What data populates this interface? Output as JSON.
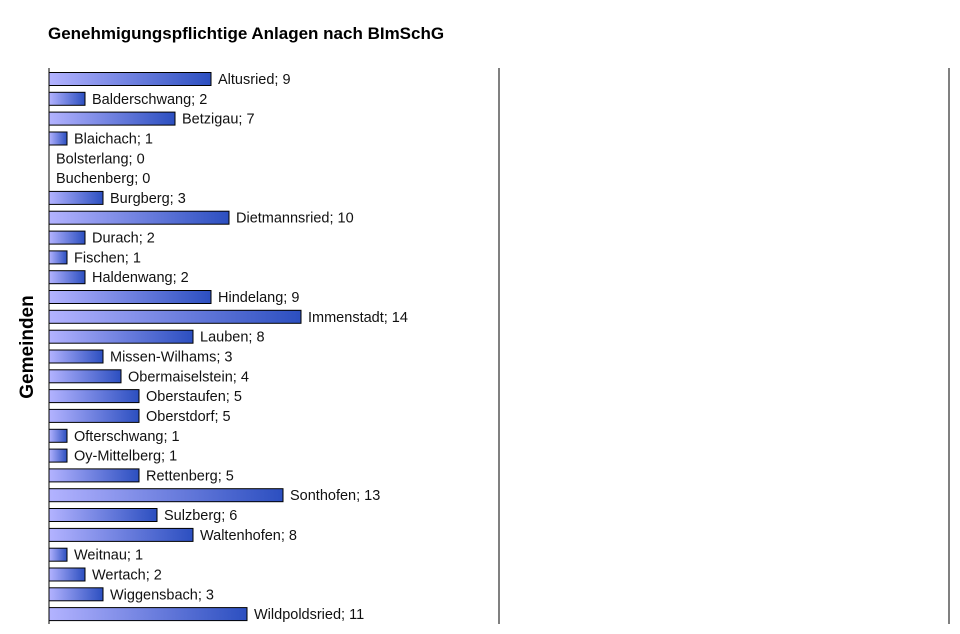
{
  "chart_data": {
    "type": "bar",
    "orientation": "horizontal",
    "title": "Genehmigungspflichtige Anlagen nach BImSchG",
    "ylabel": "Gemeinden",
    "xlabel": "",
    "categories": [
      "Altusried",
      "Balderschwang",
      "Betzigau",
      "Blaichach",
      "Bolsterlang",
      "Buchenberg",
      "Burgberg",
      "Dietmannsried",
      "Durach",
      "Fischen",
      "Haldenwang",
      "Hindelang",
      "Immenstadt",
      "Lauben",
      "Missen-Wilhams",
      "Obermaiselstein",
      "Oberstaufen",
      "Oberstdorf",
      "Ofterschwang",
      "Oy-Mittelberg",
      "Rettenberg",
      "Sonthofen",
      "Sulzberg",
      "Waltenhofen",
      "Weitnau",
      "Wertach",
      "Wiggensbach",
      "Wildpoldsried"
    ],
    "values": [
      9,
      2,
      7,
      1,
      0,
      0,
      3,
      10,
      2,
      1,
      2,
      9,
      14,
      8,
      3,
      4,
      5,
      5,
      1,
      1,
      5,
      13,
      6,
      8,
      1,
      2,
      3,
      11
    ],
    "data_labels": [
      "Altusried; 9",
      "Balderschwang; 2",
      "Betzigau; 7",
      "Blaichach; 1",
      "Bolsterlang; 0",
      "Buchenberg; 0",
      "Burgberg; 3",
      "Dietmannsried; 10",
      "Durach; 2",
      "Fischen; 1",
      "Haldenwang; 2",
      "Hindelang; 9",
      "Immenstadt;  14",
      "Lauben; 8",
      "Missen-Wilhams; 3",
      "Obermaiselstein; 4",
      "Oberstaufen; 5",
      "Oberstdorf; 5",
      "Ofterschwang;  1",
      "Oy-Mittelberg; 1",
      "Rettenberg; 5",
      "Sonthofen;  13",
      "Sulzberg; 6",
      "Waltenhofen;  8",
      "Weitnau; 1",
      "Wertach; 2",
      "Wiggensbach; 3",
      "Wildpoldsried; 11"
    ],
    "xlim": [
      0,
      50
    ],
    "grid": true,
    "legend": "none",
    "colors": {
      "bar_light": "#b3b3ff",
      "bar_dark": "#2c4fc0",
      "bar_stroke": "#000000",
      "axis": "#000000"
    }
  }
}
